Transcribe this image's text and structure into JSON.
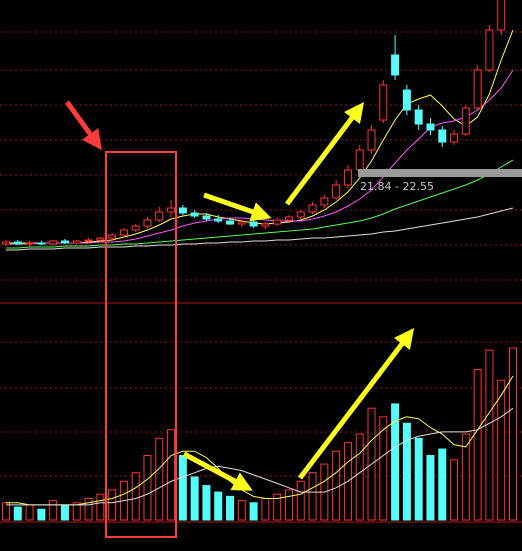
{
  "chart_data": [
    {
      "type": "candlestick",
      "open": [
        15.6,
        15.8,
        15.6,
        15.7,
        15.6,
        15.9,
        15.7,
        15.9,
        16.0,
        16.2,
        16.5,
        17.0,
        17.4,
        18.0,
        18.8,
        19.2,
        18.7,
        18.4,
        18.1,
        17.9,
        17.6,
        17.8,
        17.4,
        17.6,
        18.0,
        18.3,
        18.8,
        19.5,
        20.2,
        21.5,
        23.0,
        25.0,
        28.0,
        34.5,
        31.0,
        29.0,
        27.6,
        27.0,
        25.8,
        26.6,
        29.2,
        33.0,
        37.0,
        40.5
      ],
      "high": [
        16.0,
        16.0,
        15.9,
        15.9,
        16.0,
        16.1,
        16.0,
        16.2,
        16.3,
        16.7,
        17.2,
        17.6,
        18.3,
        19.3,
        20.0,
        19.5,
        19.0,
        18.7,
        18.5,
        18.2,
        18.0,
        18.0,
        17.8,
        18.2,
        18.5,
        19.0,
        19.8,
        20.5,
        22.0,
        23.5,
        25.5,
        27.5,
        32.0,
        36.5,
        31.5,
        29.5,
        28.2,
        27.4,
        27.0,
        29.5,
        33.5,
        37.5,
        41.0,
        44.0
      ],
      "low": [
        15.4,
        15.5,
        15.4,
        15.5,
        15.5,
        15.6,
        15.6,
        15.7,
        15.8,
        16.0,
        16.3,
        16.8,
        17.2,
        17.8,
        18.3,
        18.5,
        18.2,
        17.9,
        17.7,
        17.5,
        17.3,
        17.2,
        17.1,
        17.4,
        17.8,
        18.1,
        18.6,
        19.2,
        20.0,
        21.2,
        22.5,
        24.6,
        27.7,
        32.0,
        28.5,
        27.0,
        26.5,
        25.3,
        25.5,
        26.4,
        29.0,
        32.8,
        36.5,
        40.0
      ],
      "close": [
        15.8,
        15.6,
        15.7,
        15.6,
        15.9,
        15.7,
        15.9,
        16.0,
        16.2,
        16.5,
        17.0,
        17.4,
        18.0,
        18.8,
        19.2,
        18.7,
        18.4,
        18.1,
        17.9,
        17.6,
        17.8,
        17.4,
        17.6,
        18.0,
        18.3,
        18.8,
        19.5,
        20.2,
        21.5,
        23.0,
        25.0,
        27.0,
        31.5,
        32.5,
        29.0,
        27.6,
        27.0,
        25.8,
        26.6,
        29.2,
        33.0,
        37.0,
        40.5,
        43.0
      ],
      "ylim": [
        10,
        40
      ],
      "up_color": "#ff3232",
      "down_color": "#54fcfc",
      "series": [
        {
          "color": "#ffff54",
          "values": [
            15.7,
            15.7,
            15.7,
            15.7,
            15.7,
            15.7,
            15.7,
            15.8,
            15.9,
            16.0,
            16.3,
            16.6,
            17.0,
            17.5,
            18.1,
            18.4,
            18.6,
            18.6,
            18.3,
            18.1,
            17.9,
            17.7,
            17.6,
            17.7,
            17.8,
            18.0,
            18.4,
            19.0,
            19.8,
            20.8,
            22.2,
            23.9,
            26.0,
            28.0,
            29.6,
            30.1,
            30.5,
            29.4,
            28.1,
            27.4,
            28.3,
            30.6,
            34.0,
            37.0
          ]
        },
        {
          "color": "#ff54ff",
          "values": [
            15.6,
            15.6,
            15.6,
            15.7,
            15.7,
            15.7,
            15.7,
            15.7,
            15.8,
            15.8,
            15.9,
            16.1,
            16.4,
            16.7,
            17.0,
            17.4,
            17.7,
            17.9,
            18.1,
            18.2,
            18.2,
            18.1,
            18.0,
            17.9,
            17.9,
            17.9,
            18.1,
            18.4,
            18.8,
            19.4,
            20.1,
            21.0,
            22.3,
            23.7,
            25.0,
            26.1,
            27.3,
            27.7,
            27.9,
            28.3,
            29.0,
            30.0,
            31.2,
            33.0
          ]
        },
        {
          "color": "#54ff54",
          "values": [
            15.2,
            15.2,
            15.3,
            15.3,
            15.3,
            15.4,
            15.4,
            15.4,
            15.5,
            15.5,
            15.6,
            15.6,
            15.7,
            15.8,
            15.9,
            16.0,
            16.1,
            16.2,
            16.3,
            16.4,
            16.5,
            16.6,
            16.7,
            16.8,
            16.9,
            17.0,
            17.1,
            17.3,
            17.5,
            17.7,
            17.9,
            18.2,
            18.6,
            19.1,
            19.5,
            19.9,
            20.3,
            20.7,
            21.1,
            21.5,
            22.0,
            22.6,
            23.3,
            24.0
          ]
        },
        {
          "color": "#e0e0e0",
          "values": [
            15.0,
            15.0,
            15.1,
            15.1,
            15.1,
            15.2,
            15.2,
            15.2,
            15.3,
            15.3,
            15.3,
            15.4,
            15.4,
            15.5,
            15.5,
            15.6,
            15.6,
            15.7,
            15.7,
            15.8,
            15.8,
            15.9,
            15.9,
            16.0,
            16.0,
            16.1,
            16.2,
            16.2,
            16.3,
            16.4,
            16.5,
            16.6,
            16.8,
            16.9,
            17.1,
            17.3,
            17.5,
            17.7,
            17.9,
            18.1,
            18.3,
            18.6,
            18.9,
            19.2
          ]
        }
      ],
      "annotation": "21.84 - 22.55"
    },
    {
      "type": "bar",
      "values": [
        8,
        6,
        7,
        5,
        9,
        7,
        8,
        10,
        12,
        14,
        18,
        22,
        30,
        38,
        42,
        30,
        20,
        16,
        13,
        11,
        9,
        8,
        10,
        12,
        14,
        18,
        22,
        26,
        32,
        36,
        40,
        52,
        48,
        54,
        45,
        38,
        30,
        33,
        28,
        40,
        70,
        79,
        65,
        80
      ],
      "ylim": [
        0,
        100
      ],
      "series": [
        {
          "color": "#ffff54",
          "values": [
            8,
            8,
            7,
            7,
            7,
            7,
            7,
            8,
            9,
            10,
            12,
            15,
            19,
            24,
            30,
            32,
            32,
            29,
            24,
            18,
            14,
            11,
            10,
            10,
            11,
            12,
            15,
            18,
            22,
            27,
            31,
            37,
            42,
            46,
            48,
            47,
            43,
            40,
            35,
            34,
            42,
            50,
            58,
            67
          ]
        },
        {
          "color": "#e0e0e0",
          "values": [
            7,
            7,
            7,
            7,
            7,
            7,
            7,
            7,
            8,
            8,
            9,
            10,
            12,
            15,
            18,
            20,
            22,
            24,
            25,
            24,
            23,
            21,
            19,
            17,
            15,
            13,
            13,
            13,
            15,
            18,
            22,
            26,
            30,
            34,
            37,
            39,
            40,
            41,
            41,
            41,
            42,
            45,
            48,
            52
          ]
        }
      ]
    }
  ]
}
